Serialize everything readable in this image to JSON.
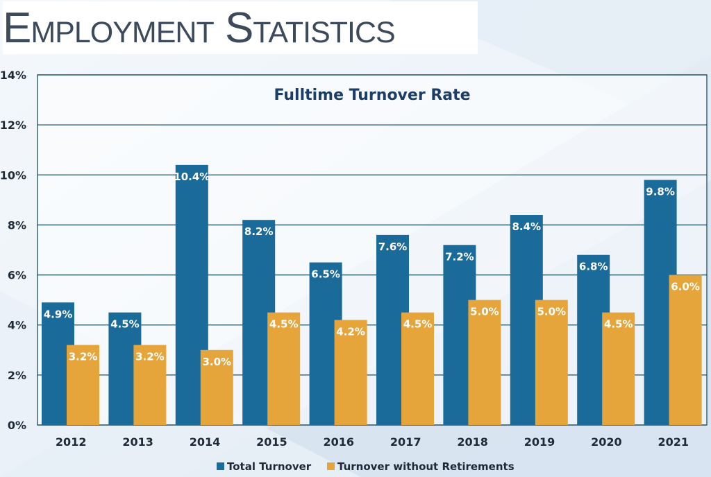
{
  "page": {
    "title": "Employment Statistics"
  },
  "colors": {
    "total": "#1a6a9a",
    "without": "#e6a53a",
    "title": "#1b3d66",
    "grid": "#1c4e60"
  },
  "chart_data": {
    "type": "bar",
    "title": "Fulltime Turnover Rate",
    "categories": [
      "2012",
      "2013",
      "2014",
      "2015",
      "2016",
      "2017",
      "2018",
      "2019",
      "2020",
      "2021"
    ],
    "series": [
      {
        "name": "Total Turnover",
        "values": [
          4.9,
          4.5,
          10.4,
          8.2,
          6.5,
          7.6,
          7.2,
          8.4,
          6.8,
          9.8
        ],
        "labels": [
          "4.9%",
          "4.5%",
          "10.4%",
          "8.2%",
          "6.5%",
          "7.6%",
          "7.2%",
          "8.4%",
          "6.8%",
          "9.8%"
        ]
      },
      {
        "name": "Turnover without Retirements",
        "values": [
          3.2,
          3.2,
          3.0,
          4.5,
          4.2,
          4.5,
          5.0,
          5.0,
          4.5,
          6.0
        ],
        "labels": [
          "3.2%",
          "3.2%",
          "3.0%",
          "4.5%",
          "4.2%",
          "4.5%",
          "5.0%",
          "5.0%",
          "4.5%",
          "6.0%"
        ]
      }
    ],
    "yticks": [
      "0%",
      "2%",
      "4%",
      "6%",
      "8%",
      "10%",
      "12%",
      "14%"
    ],
    "ylim": [
      0,
      14
    ],
    "ystep": 2,
    "grid": true,
    "legend_position": "bottom"
  }
}
